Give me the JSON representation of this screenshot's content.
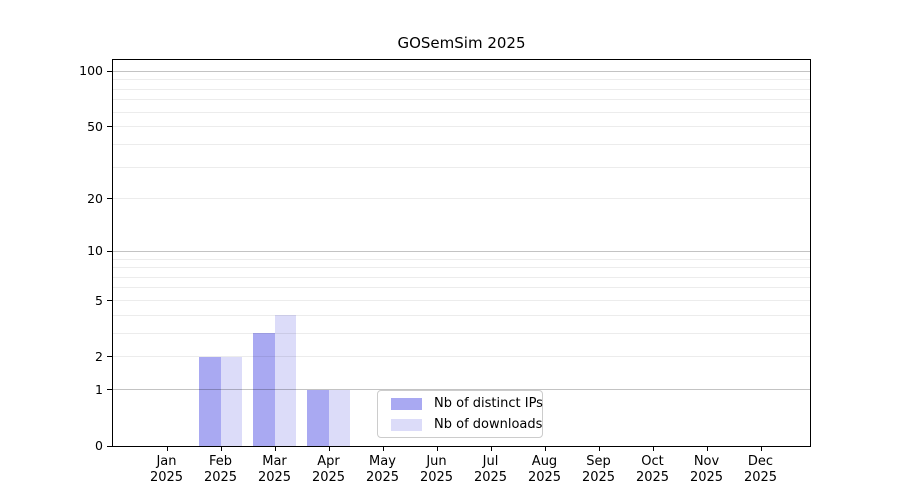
{
  "chart_data": {
    "type": "bar",
    "title": "GOSemSim 2025",
    "categories": [
      {
        "month": "Jan",
        "year": "2025"
      },
      {
        "month": "Feb",
        "year": "2025"
      },
      {
        "month": "Mar",
        "year": "2025"
      },
      {
        "month": "Apr",
        "year": "2025"
      },
      {
        "month": "May",
        "year": "2025"
      },
      {
        "month": "Jun",
        "year": "2025"
      },
      {
        "month": "Jul",
        "year": "2025"
      },
      {
        "month": "Aug",
        "year": "2025"
      },
      {
        "month": "Sep",
        "year": "2025"
      },
      {
        "month": "Oct",
        "year": "2025"
      },
      {
        "month": "Nov",
        "year": "2025"
      },
      {
        "month": "Dec",
        "year": "2025"
      }
    ],
    "series": [
      {
        "name": "Nb of distinct IPs",
        "color": "#a9a9f2",
        "values": [
          0,
          2,
          3,
          1,
          0,
          0,
          0,
          0,
          0,
          0,
          0,
          0
        ]
      },
      {
        "name": "Nb of downloads",
        "color": "#dcdcf9",
        "values": [
          0,
          2,
          4,
          1,
          0,
          0,
          0,
          0,
          0,
          0,
          0,
          0
        ]
      }
    ],
    "xlabel": "",
    "ylabel": "",
    "y_axis": {
      "scale": "log1p",
      "ticks": [
        0,
        1,
        2,
        5,
        10,
        20,
        50,
        100
      ],
      "ylim": [
        0,
        115
      ],
      "major_gridlines": [
        1,
        10,
        100
      ],
      "minor_gridlines": [
        2,
        3,
        4,
        5,
        6,
        7,
        8,
        9,
        20,
        30,
        40,
        50,
        60,
        70,
        80,
        90
      ]
    },
    "legend": {
      "position": "inside-bottom-center"
    },
    "colors": {
      "background": "#ffffff",
      "text": "#000000",
      "spine": "#000000",
      "major_gridline": "#c3c3c3",
      "minor_gridline": "#ececec",
      "legend_border": "#cccccc"
    }
  }
}
